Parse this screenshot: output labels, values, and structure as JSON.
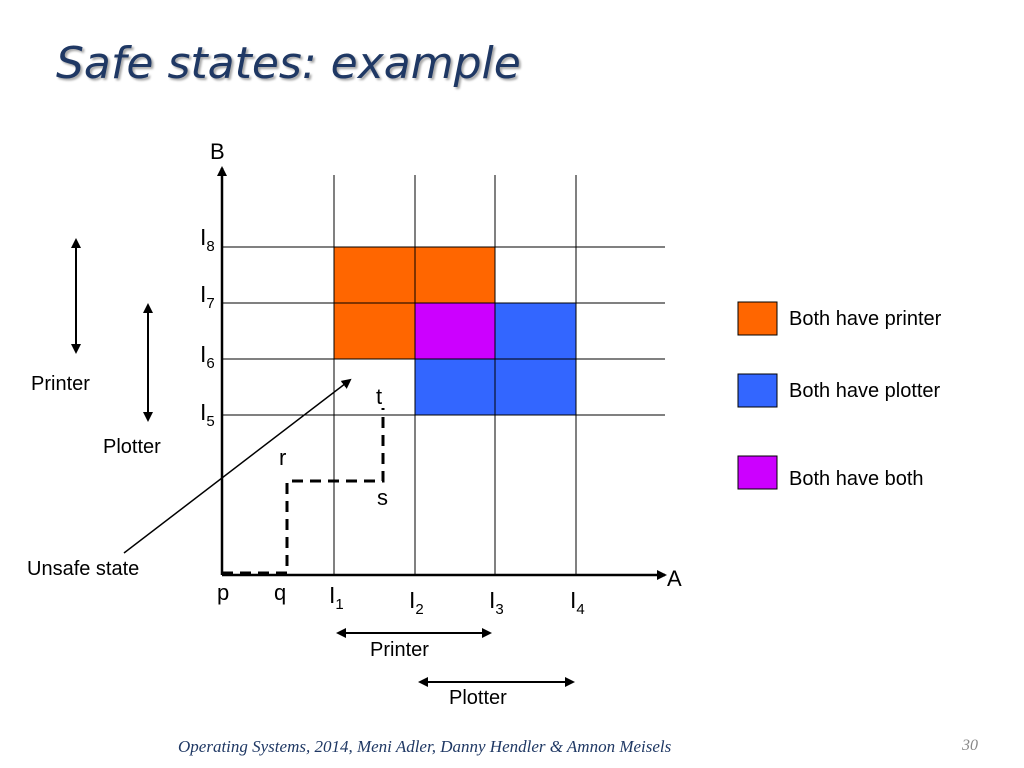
{
  "title": "Safe states: example",
  "axes": {
    "y_label": "B",
    "x_label": "A"
  },
  "x_ticks": [
    {
      "base": "I",
      "sub": "1"
    },
    {
      "base": "I",
      "sub": "2"
    },
    {
      "base": "I",
      "sub": "3"
    },
    {
      "base": "I",
      "sub": "4"
    }
  ],
  "y_ticks": [
    {
      "base": "I",
      "sub": "5"
    },
    {
      "base": "I",
      "sub": "6"
    },
    {
      "base": "I",
      "sub": "7"
    },
    {
      "base": "I",
      "sub": "8"
    }
  ],
  "path_points": [
    "p",
    "q",
    "r",
    "s",
    "t"
  ],
  "resource_labels": {
    "left_printer": "Printer",
    "left_plotter": "Plotter",
    "bottom_printer": "Printer",
    "bottom_plotter": "Plotter"
  },
  "unsafe_label": "Unsafe state",
  "legend": [
    {
      "label": "Both have printer",
      "color": "#ff6600"
    },
    {
      "label": "Both have plotter",
      "color": "#3366ff"
    },
    {
      "label": "Both have both",
      "color": "#cc00ff"
    }
  ],
  "colors": {
    "printer": "#ff6600",
    "plotter": "#3366ff",
    "both": "#cc00ff",
    "title": "#1f3864"
  },
  "footer": "Operating Systems, 2014, Meni Adler, Danny Hendler & Amnon Meisels",
  "page_number": "30"
}
